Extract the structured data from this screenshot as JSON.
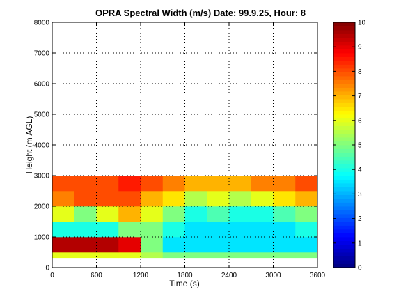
{
  "chart_data": {
    "type": "heatmap",
    "title": "OPRA Spectral Width (m/s)  Date: 99.9.25, Hour: 8",
    "xlabel": "Time (s)",
    "ylabel": "Height (m AGL)",
    "xlim": [
      0,
      3600
    ],
    "ylim": [
      0,
      8000
    ],
    "xticks": [
      0,
      600,
      1200,
      1800,
      2400,
      3000,
      3600
    ],
    "yticks": [
      0,
      1000,
      2000,
      3000,
      4000,
      5000,
      6000,
      7000,
      8000
    ],
    "grid": true,
    "colormap": "jet",
    "colorbar": {
      "min": 0,
      "max": 10,
      "ticks": [
        0,
        1,
        2,
        3,
        4,
        5,
        6,
        7,
        8,
        9,
        10
      ]
    },
    "time_bin_edges_s": [
      0,
      300,
      600,
      900,
      1200,
      1500,
      1800,
      2100,
      2400,
      2700,
      3000,
      3300,
      3600
    ],
    "height_bin_edges_m": [
      300,
      500,
      1000,
      1500,
      2000,
      2500,
      3000
    ],
    "values": [
      [
        6,
        6,
        6,
        6,
        5.5,
        5,
        5,
        5,
        5,
        5,
        5,
        5
      ],
      [
        9.5,
        9.5,
        9.5,
        9,
        5,
        3.5,
        3.5,
        3.5,
        3.5,
        3.5,
        3.5,
        3.5
      ],
      [
        4,
        4,
        4,
        5,
        5,
        4,
        3.5,
        3.5,
        3.5,
        3.5,
        3.5,
        4
      ],
      [
        6,
        5,
        6,
        7,
        6,
        5,
        4,
        4.5,
        4,
        4,
        4.5,
        5
      ],
      [
        7.5,
        8,
        8,
        8,
        7,
        6.5,
        5.5,
        6,
        5.5,
        6,
        6.5,
        7
      ],
      [
        8,
        8,
        8,
        8.5,
        8,
        7.5,
        7,
        7,
        7,
        7.5,
        7.5,
        8
      ]
    ]
  }
}
